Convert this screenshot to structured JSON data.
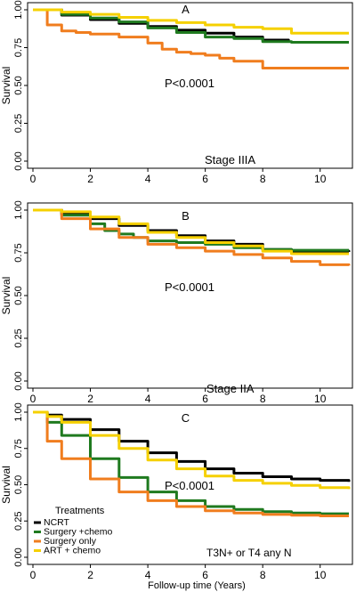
{
  "colors": {
    "NCRT": "#000000",
    "Surgery +chemo": "#1f7a1f",
    "Surgery only": "#f07d1e",
    "ART + chemo": "#f5d000"
  },
  "chart_data": [
    {
      "type": "line",
      "panel_letter": "A",
      "annotation": "P<0.0001",
      "stage_label": "Stage IIIA",
      "ylabel": "Survival",
      "xlabel": "",
      "xlim": [
        0,
        11
      ],
      "ylim": [
        0,
        1
      ],
      "x_ticks": [
        "0",
        "2",
        "4",
        "6",
        "8",
        "10"
      ],
      "y_ticks": [
        "0.00",
        "0.25",
        "0.50",
        "0.75",
        "1.00"
      ],
      "series": [
        {
          "name": "NCRT",
          "x": [
            0,
            1,
            2,
            3,
            4,
            5,
            6,
            7,
            8,
            8.9
          ],
          "values": [
            1.0,
            0.965,
            0.935,
            0.91,
            0.89,
            0.865,
            0.845,
            0.82,
            0.8,
            0.795
          ]
        },
        {
          "name": "Surgery +chemo",
          "x": [
            0,
            1,
            2,
            3,
            4,
            5,
            6,
            7,
            8,
            9,
            11
          ],
          "values": [
            1.0,
            0.97,
            0.945,
            0.92,
            0.88,
            0.85,
            0.82,
            0.81,
            0.79,
            0.785,
            0.785
          ]
        },
        {
          "name": "Surgery only",
          "x": [
            0,
            0.5,
            1,
            1.5,
            2,
            3,
            4,
            4.5,
            5,
            5.5,
            6,
            6.5,
            7,
            8,
            9,
            11
          ],
          "values": [
            1.0,
            0.9,
            0.86,
            0.85,
            0.84,
            0.82,
            0.78,
            0.74,
            0.72,
            0.71,
            0.7,
            0.68,
            0.66,
            0.615,
            0.615,
            0.615
          ]
        },
        {
          "name": "ART + chemo",
          "x": [
            0,
            1,
            2,
            3,
            4,
            5,
            6,
            7,
            8,
            9,
            11
          ],
          "values": [
            1.0,
            0.985,
            0.97,
            0.95,
            0.93,
            0.915,
            0.9,
            0.885,
            0.875,
            0.845,
            0.845
          ]
        }
      ]
    },
    {
      "type": "line",
      "panel_letter": "B",
      "annotation": "P<0.0001",
      "stage_label": "Stage IIA",
      "ylabel": "Survival",
      "xlabel": "",
      "xlim": [
        0,
        11
      ],
      "ylim": [
        0,
        1
      ],
      "x_ticks": [
        "0",
        "2",
        "4",
        "6",
        "8",
        "10"
      ],
      "y_ticks": [
        "0.00",
        "0.25",
        "0.50",
        "0.75",
        "1.00"
      ],
      "series": [
        {
          "name": "NCRT",
          "x": [
            0,
            1,
            2,
            3,
            4,
            5,
            6,
            7,
            8,
            9,
            11
          ],
          "values": [
            1.0,
            0.98,
            0.95,
            0.91,
            0.88,
            0.85,
            0.82,
            0.8,
            0.77,
            0.76,
            0.755
          ]
        },
        {
          "name": "Surgery +chemo",
          "x": [
            0,
            1,
            2,
            2.5,
            3,
            3.5,
            4,
            5,
            6,
            7,
            8,
            9,
            11
          ],
          "values": [
            1.0,
            0.97,
            0.92,
            0.88,
            0.86,
            0.84,
            0.82,
            0.81,
            0.8,
            0.78,
            0.77,
            0.765,
            0.765
          ]
        },
        {
          "name": "Surgery only",
          "x": [
            0,
            1,
            2,
            3,
            4,
            5,
            6,
            7,
            8,
            9,
            10,
            11
          ],
          "values": [
            1.0,
            0.95,
            0.89,
            0.84,
            0.8,
            0.78,
            0.76,
            0.74,
            0.72,
            0.7,
            0.68,
            0.675
          ]
        },
        {
          "name": "ART + chemo",
          "x": [
            0,
            1,
            2,
            3,
            4,
            5,
            6,
            7,
            8,
            9,
            11
          ],
          "values": [
            1.0,
            0.99,
            0.96,
            0.92,
            0.87,
            0.84,
            0.81,
            0.79,
            0.76,
            0.745,
            0.745
          ]
        }
      ]
    },
    {
      "type": "line",
      "panel_letter": "C",
      "annotation": "P<0.0001",
      "stage_label": "T3N+ or T4 any N",
      "ylabel": "Survival",
      "xlabel": "Follow-up time (Years)",
      "xlim": [
        0,
        11
      ],
      "ylim": [
        0,
        1
      ],
      "x_ticks": [
        "0",
        "2",
        "4",
        "6",
        "8",
        "10"
      ],
      "y_ticks": [
        "0.00",
        "0.25",
        "0.50",
        "0.75",
        "1.00"
      ],
      "legend_title": "Treatments",
      "legend_position": "bottom-left",
      "legend_entries": [
        "NCRT",
        "Surgery +chemo",
        "Surgery only",
        "ART + chemo"
      ],
      "series": [
        {
          "name": "NCRT",
          "x": [
            0,
            0.5,
            1,
            2,
            3,
            4,
            5,
            6,
            7,
            8,
            9,
            10,
            11
          ],
          "values": [
            1.0,
            0.98,
            0.95,
            0.88,
            0.8,
            0.72,
            0.66,
            0.61,
            0.58,
            0.555,
            0.54,
            0.53,
            0.52
          ]
        },
        {
          "name": "Surgery +chemo",
          "x": [
            0,
            0.5,
            1,
            2,
            3,
            4,
            5,
            6,
            7,
            8,
            9,
            10,
            11
          ],
          "values": [
            1.0,
            0.93,
            0.84,
            0.68,
            0.55,
            0.45,
            0.39,
            0.35,
            0.33,
            0.315,
            0.305,
            0.3,
            0.3
          ]
        },
        {
          "name": "Surgery only",
          "x": [
            0,
            0.5,
            1,
            2,
            3,
            4,
            5,
            6,
            7,
            8,
            9,
            10,
            11
          ],
          "values": [
            1.0,
            0.8,
            0.68,
            0.54,
            0.45,
            0.39,
            0.35,
            0.32,
            0.305,
            0.295,
            0.29,
            0.285,
            0.285
          ]
        },
        {
          "name": "ART + chemo",
          "x": [
            0,
            0.5,
            1,
            2,
            3,
            4,
            5,
            6,
            7,
            8,
            9,
            10,
            11
          ],
          "values": [
            1.0,
            0.97,
            0.93,
            0.84,
            0.75,
            0.67,
            0.61,
            0.56,
            0.53,
            0.51,
            0.495,
            0.48,
            0.47
          ]
        }
      ]
    }
  ]
}
